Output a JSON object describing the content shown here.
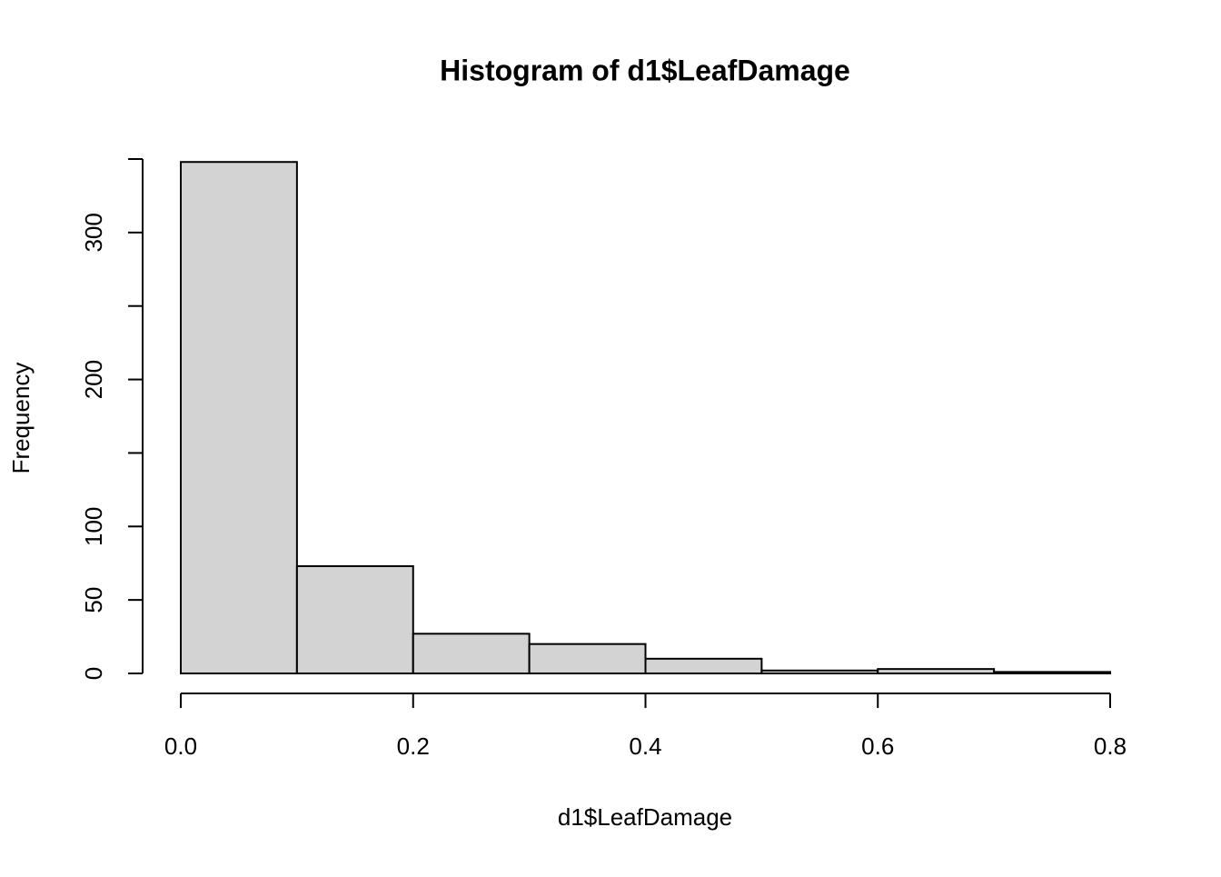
{
  "chart_data": {
    "type": "histogram",
    "title": "Histogram of d1$LeafDamage",
    "x_label": "d1$LeafDamage",
    "y_label": "Frequency",
    "bins": [
      0,
      0.1,
      0.2,
      0.3,
      0.4,
      0.5,
      0.6,
      0.7,
      0.8
    ],
    "values": [
      348,
      73,
      27,
      20,
      10,
      2,
      3,
      1
    ],
    "color": "#d3d3d3",
    "xlim": [
      0,
      0.8
    ],
    "xticks": [
      {
        "value": 0,
        "label": "0.0"
      },
      0.2,
      0.4,
      0.6,
      0.8
    ],
    "ylim": [
      0,
      350
    ],
    "yticks": [
      0,
      50,
      100,
      200,
      300
    ],
    "yticks_unlabeled": [
      150,
      250,
      350
    ]
  }
}
